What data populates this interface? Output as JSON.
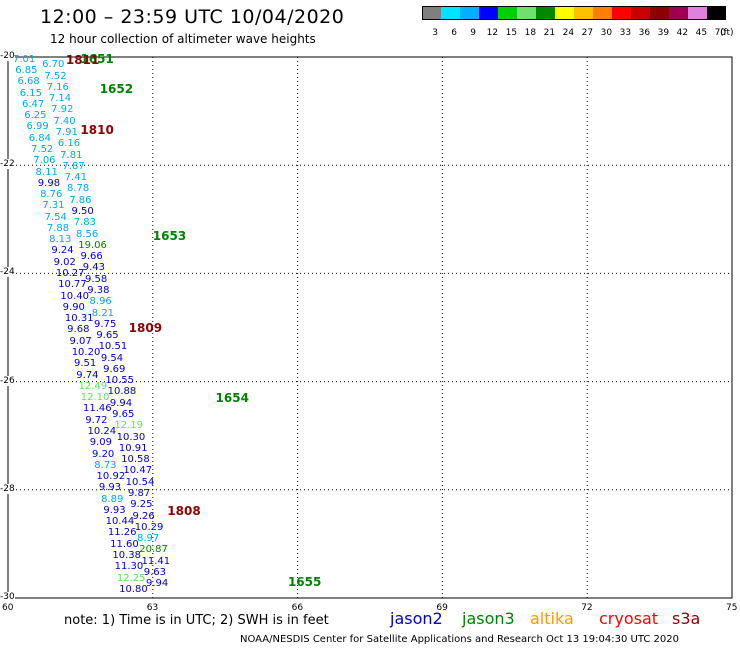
{
  "header": {
    "title": "12:00 – 23:59 UTC 10/04/2020",
    "subtitle": "12 hour collection of altimeter wave heights"
  },
  "legend": {
    "labels": [
      "3",
      "6",
      "9",
      "12",
      "15",
      "18",
      "21",
      "24",
      "27",
      "30",
      "33",
      "36",
      "39",
      "42",
      "45",
      "70"
    ],
    "unit": "(ft)",
    "colors": [
      "#7f7f7f",
      "#00e5ff",
      "#00b0ff",
      "#0000ff",
      "#00d000",
      "#70e070",
      "#008800",
      "#ffff00",
      "#ffc000",
      "#ff8000",
      "#ff0000",
      "#c80000",
      "#8b0000",
      "#a00050",
      "#e080e0",
      "#000000"
    ]
  },
  "axes": {
    "lat_labels": [
      "-20",
      "-22",
      "-24",
      "-26",
      "-28",
      "-30"
    ],
    "lon_labels": [
      "60",
      "63",
      "66",
      "69",
      "72",
      "75"
    ]
  },
  "colors": {
    "jason2": "#0000c8",
    "jason3": "#008000",
    "altika": "#ff9900",
    "cryosat": "#ff0000",
    "s3a": "#8b0000",
    "light": "#00a8e0",
    "lightgreen": "#60e060"
  },
  "passes": [
    {
      "label": "1651",
      "lat": -20.03,
      "lon": 61.5,
      "color": "jason3"
    },
    {
      "label": "1811",
      "lat": -20.05,
      "lon": 61.2,
      "color": "s3a"
    },
    {
      "label": "1652",
      "lat": -20.6,
      "lon": 61.9,
      "color": "jason3"
    },
    {
      "label": "1810",
      "lat": -21.35,
      "lon": 61.5,
      "color": "s3a"
    },
    {
      "label": "1653",
      "lat": -23.3,
      "lon": 63.0,
      "color": "jason3"
    },
    {
      "label": "1809",
      "lat": -25.0,
      "lon": 62.5,
      "color": "s3a"
    },
    {
      "label": "1654",
      "lat": -26.3,
      "lon": 64.3,
      "color": "jason3"
    },
    {
      "label": "1808",
      "lat": -28.4,
      "lon": 63.3,
      "color": "s3a"
    },
    {
      "label": "1655",
      "lat": -29.7,
      "lon": 65.8,
      "color": "jason3"
    }
  ],
  "tracks": {
    "track_a": {
      "lon_start": 60.6,
      "lat_start": -20.05,
      "lon_end": 62.8,
      "lat_end": -29.85,
      "values": [
        {
          "v": "7.01",
          "c": "light"
        },
        {
          "v": "6.70",
          "c": "light"
        },
        {
          "v": "6.85",
          "c": "light"
        },
        {
          "v": "7.52",
          "c": "light"
        },
        {
          "v": "6.68",
          "c": "light"
        },
        {
          "v": "7.16",
          "c": "light"
        },
        {
          "v": "6.15",
          "c": "light"
        },
        {
          "v": "7.14",
          "c": "light"
        },
        {
          "v": "6.47",
          "c": "light"
        },
        {
          "v": "7.92",
          "c": "light"
        },
        {
          "v": "6.25",
          "c": "light"
        },
        {
          "v": "7.40",
          "c": "light"
        },
        {
          "v": "6.99",
          "c": "light"
        },
        {
          "v": "7.91",
          "c": "light"
        },
        {
          "v": "6.84",
          "c": "light"
        },
        {
          "v": "6.16",
          "c": "light"
        },
        {
          "v": "7.52",
          "c": "light"
        },
        {
          "v": "7.81",
          "c": "light"
        },
        {
          "v": "7.06",
          "c": "light"
        },
        {
          "v": "7.87",
          "c": "light"
        },
        {
          "v": "8.11",
          "c": "light"
        },
        {
          "v": "7.41",
          "c": "light"
        },
        {
          "v": "9.98",
          "c": "jason2"
        },
        {
          "v": "8.78",
          "c": "light"
        },
        {
          "v": "8.76",
          "c": "light"
        },
        {
          "v": "7.86",
          "c": "light"
        },
        {
          "v": "7.31",
          "c": "light"
        },
        {
          "v": "9.50",
          "c": "jason2"
        },
        {
          "v": "7.54",
          "c": "light"
        },
        {
          "v": "7.83",
          "c": "light"
        },
        {
          "v": "7.88",
          "c": "light"
        },
        {
          "v": "8.56",
          "c": "light"
        },
        {
          "v": "8.13",
          "c": "light"
        },
        {
          "v": "19.06",
          "c": "jason3"
        },
        {
          "v": "9.24",
          "c": "jason2"
        },
        {
          "v": "9.66",
          "c": "jason2"
        },
        {
          "v": "9.02",
          "c": "jason2"
        },
        {
          "v": "9.43",
          "c": "jason2"
        },
        {
          "v": "10.27",
          "c": "jason2"
        },
        {
          "v": "9.58",
          "c": "jason2"
        },
        {
          "v": "10.77",
          "c": "jason2"
        },
        {
          "v": "9.38",
          "c": "jason2"
        },
        {
          "v": "10.40",
          "c": "jason2"
        },
        {
          "v": "8.96",
          "c": "light"
        },
        {
          "v": "9.90",
          "c": "jason2"
        },
        {
          "v": "8.21",
          "c": "light"
        },
        {
          "v": "10.31",
          "c": "jason2"
        },
        {
          "v": "9.75",
          "c": "jason2"
        },
        {
          "v": "9.68",
          "c": "jason2"
        },
        {
          "v": "9.65",
          "c": "jason2"
        },
        {
          "v": "9.07",
          "c": "jason2"
        },
        {
          "v": "10.51",
          "c": "jason2"
        },
        {
          "v": "10.20",
          "c": "jason2"
        },
        {
          "v": "9.54",
          "c": "jason2"
        },
        {
          "v": "9.51",
          "c": "jason2"
        },
        {
          "v": "9.69",
          "c": "jason2"
        },
        {
          "v": "9.74",
          "c": "jason2"
        },
        {
          "v": "10.55",
          "c": "jason2"
        },
        {
          "v": "12.49",
          "c": "lightgreen"
        },
        {
          "v": "10.88",
          "c": "jason2"
        },
        {
          "v": "12.10",
          "c": "lightgreen"
        },
        {
          "v": "9.94",
          "c": "jason2"
        },
        {
          "v": "11.46",
          "c": "jason2"
        },
        {
          "v": "9.65",
          "c": "jason2"
        },
        {
          "v": "9.72",
          "c": "jason2"
        },
        {
          "v": "12.19",
          "c": "lightgreen"
        },
        {
          "v": "10.24",
          "c": "jason2"
        },
        {
          "v": "10.30",
          "c": "jason2"
        },
        {
          "v": "9.09",
          "c": "jason2"
        },
        {
          "v": "10.91",
          "c": "jason2"
        },
        {
          "v": "9.20",
          "c": "jason2"
        },
        {
          "v": "10.58",
          "c": "jason2"
        },
        {
          "v": "8.73",
          "c": "light"
        },
        {
          "v": "10.47",
          "c": "jason2"
        },
        {
          "v": "10.92",
          "c": "jason2"
        },
        {
          "v": "10.54",
          "c": "jason2"
        },
        {
          "v": "9.93",
          "c": "jason2"
        },
        {
          "v": "9.87",
          "c": "jason2"
        },
        {
          "v": "8.89",
          "c": "light"
        },
        {
          "v": "9.25",
          "c": "jason2"
        },
        {
          "v": "9.93",
          "c": "jason2"
        },
        {
          "v": "9.26",
          "c": "jason2"
        },
        {
          "v": "10.44",
          "c": "jason2"
        },
        {
          "v": "10.29",
          "c": "jason2"
        },
        {
          "v": "11.26",
          "c": "jason2"
        },
        {
          "v": "8.97",
          "c": "light"
        },
        {
          "v": "11.60",
          "c": "jason2"
        },
        {
          "v": "20.87",
          "c": "jason3"
        },
        {
          "v": "10.38",
          "c": "jason2"
        },
        {
          "v": "11.41",
          "c": "jason2"
        },
        {
          "v": "11.30",
          "c": "jason2"
        },
        {
          "v": "9.63",
          "c": "jason2"
        },
        {
          "v": "12.25",
          "c": "lightgreen"
        },
        {
          "v": "9.94",
          "c": "jason2"
        },
        {
          "v": "10.80",
          "c": "jason2"
        }
      ]
    }
  },
  "note": "note:  1) Time is in UTC;  2) SWH is in feet",
  "satellites": [
    {
      "name": "jason2",
      "color": "#0000c8",
      "left": 390
    },
    {
      "name": "jason3",
      "color": "#008000",
      "left": 462
    },
    {
      "name": "altika",
      "color": "#ff9900",
      "left": 530
    },
    {
      "name": "cryosat",
      "color": "#ff0000",
      "left": 599
    },
    {
      "name": "s3a",
      "color": "#8b0000",
      "left": 672
    }
  ],
  "footer": "NOAA/NESDIS Center for Satellite Applications and Research     Oct 13 19:04:30 UTC 2020"
}
